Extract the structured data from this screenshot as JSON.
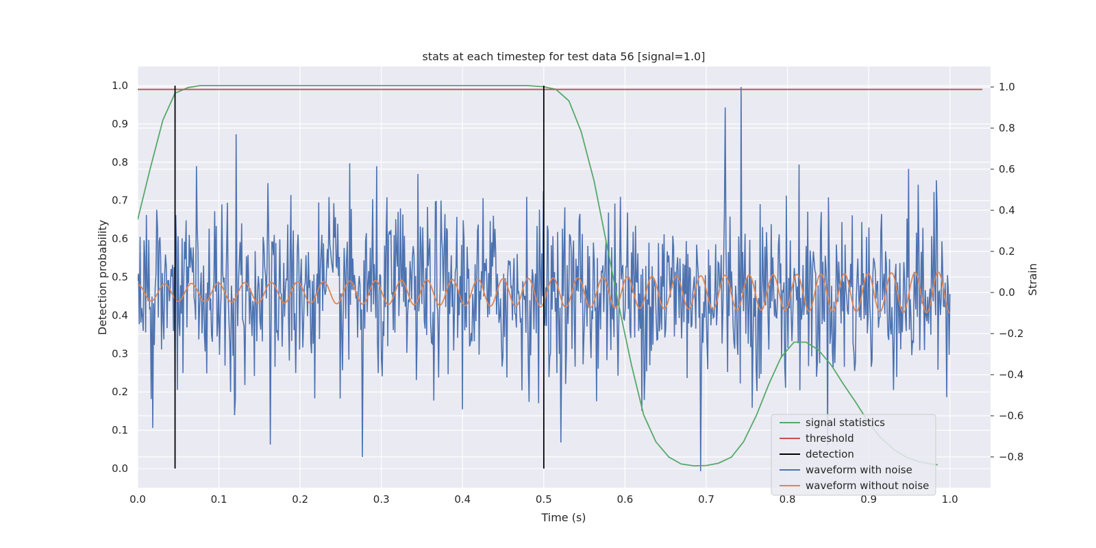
{
  "chart_data": {
    "type": "line",
    "title": "stats at each timestep for test data 56 [signal=1.0]",
    "xlabel": "Time (s)",
    "ylabel": "Detection probability",
    "ylabel_right": "Strain",
    "xlim": [
      0.0,
      1.05
    ],
    "ylim": [
      -0.05,
      1.05
    ],
    "ylim_right": [
      -0.95,
      1.1
    ],
    "x_ticks": [
      "0.0",
      "0.1",
      "0.2",
      "0.3",
      "0.4",
      "0.5",
      "0.6",
      "0.7",
      "0.8",
      "0.9",
      "1.0"
    ],
    "y_ticks": [
      "0.0",
      "0.1",
      "0.2",
      "0.3",
      "0.4",
      "0.5",
      "0.6",
      "0.7",
      "0.8",
      "0.9",
      "1.0"
    ],
    "y_ticks_right": [
      "−0.8",
      "−0.6",
      "−0.4",
      "−0.2",
      "0.0",
      "0.2",
      "0.4",
      "0.6",
      "0.8",
      "1.0"
    ],
    "grid": true,
    "legend_position": "lower-right",
    "colors": {
      "signal_statistics": "#55a868",
      "threshold": "#c44e52",
      "detection": "#000000",
      "waveform_with_noise": "#4c72b0",
      "waveform_without_noise": "#dd8452",
      "axes_background": "#eaeaf2",
      "grid": "#ffffff"
    },
    "series": [
      {
        "name": "signal statistics",
        "axis": "left",
        "x": [
          0.0,
          0.015,
          0.031,
          0.046,
          0.062,
          0.077,
          0.092,
          0.108,
          0.2,
          0.3,
          0.4,
          0.48,
          0.5,
          0.515,
          0.531,
          0.546,
          0.562,
          0.577,
          0.592,
          0.608,
          0.623,
          0.638,
          0.654,
          0.669,
          0.685,
          0.7,
          0.715,
          0.731,
          0.746,
          0.762,
          0.777,
          0.792,
          0.808,
          0.823,
          0.838,
          0.854,
          0.869,
          0.885,
          0.9,
          0.915,
          0.931,
          0.946,
          0.962,
          0.977,
          0.985
        ],
        "y": [
          0.65,
          0.78,
          0.91,
          0.98,
          0.995,
          1.0,
          1.0,
          1.0,
          1.0,
          1.0,
          1.0,
          1.0,
          0.997,
          0.99,
          0.96,
          0.88,
          0.75,
          0.59,
          0.43,
          0.27,
          0.14,
          0.07,
          0.03,
          0.012,
          0.007,
          0.008,
          0.014,
          0.03,
          0.07,
          0.14,
          0.22,
          0.29,
          0.33,
          0.33,
          0.31,
          0.27,
          0.22,
          0.17,
          0.12,
          0.08,
          0.05,
          0.03,
          0.018,
          0.012,
          0.01
        ]
      },
      {
        "name": "threshold",
        "axis": "left",
        "x": [
          0.0,
          1.04
        ],
        "y": [
          0.99,
          0.99
        ]
      },
      {
        "name": "detection",
        "axis": "left",
        "vlines_x": [
          0.046,
          0.5
        ],
        "ymin": 0.0,
        "ymax": 1.0
      },
      {
        "name": "waveform with noise",
        "axis": "right",
        "sample_count": 1024,
        "note_values": "dense noisy strain trace, approximately zero mean with std ~0.22, range about -0.87 to 1.0, peak 1.0 near t=0.743",
        "peaks": [
          [
            0.743,
            1.0
          ],
          [
            0.723,
            0.9
          ],
          [
            0.121,
            0.77
          ],
          [
            0.693,
            -0.87
          ],
          [
            0.277,
            -0.8
          ],
          [
            0.163,
            -0.74
          ]
        ],
        "std": 0.22
      },
      {
        "name": "waveform without noise",
        "axis": "right",
        "model": "chirp",
        "start_frequency_hz": 30,
        "end_frequency_hz": 35,
        "start_amplitude": 0.04,
        "end_amplitude": 0.1,
        "x_range": [
          0.0,
          1.0
        ]
      }
    ]
  }
}
